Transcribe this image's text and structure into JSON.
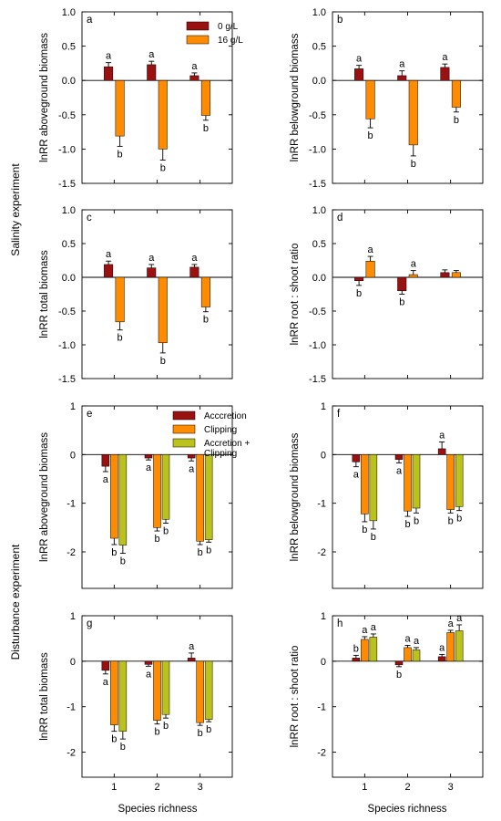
{
  "figure": {
    "group_labels": [
      "Salinity experiment",
      "Disturbance experiment"
    ],
    "x_axis_label": "Species richness",
    "legends": [
      {
        "entries": [
          {
            "label": "0 g/L",
            "color": "#9b1111"
          },
          {
            "label": "16 g/L",
            "color": "#ff8c00"
          }
        ]
      },
      {
        "entries": [
          {
            "label": "Acccretion",
            "color": "#9b1111"
          },
          {
            "label": "Clipping",
            "color": "#ff8c00"
          },
          {
            "label": "Accretion +\nClipping",
            "color": "#bcc21c"
          }
        ]
      }
    ]
  },
  "chart_data": [
    {
      "panel": "a",
      "type": "bar",
      "ylabel": "lnRR aboveground biomass",
      "ylim": [
        -1.5,
        1.0
      ],
      "yticks": [
        1.0,
        0.5,
        0.0,
        -0.5,
        -1.0,
        -1.5
      ],
      "tick_format": "1dp",
      "categories": [
        "1",
        "2",
        "3"
      ],
      "show_x_ticklabels": false,
      "series": [
        {
          "name": "0 g/L",
          "color": "#9b1111",
          "values": [
            0.2,
            0.23,
            0.07
          ],
          "errors": [
            0.06,
            0.05,
            0.04
          ],
          "letters": [
            "a",
            "a",
            "a"
          ]
        },
        {
          "name": "16 g/L",
          "color": "#ff8c00",
          "values": [
            -0.81,
            -1.0,
            -0.51
          ],
          "errors": [
            0.15,
            0.16,
            0.07
          ],
          "letters": [
            "b",
            "b",
            "b"
          ]
        }
      ]
    },
    {
      "panel": "b",
      "type": "bar",
      "ylabel": "lnRR belowground biomass",
      "ylim": [
        -1.5,
        1.0
      ],
      "yticks": [
        1.0,
        0.5,
        0.0,
        -0.5,
        -1.0,
        -1.5
      ],
      "tick_format": "1dp",
      "categories": [
        "1",
        "2",
        "3"
      ],
      "show_x_ticklabels": false,
      "series": [
        {
          "name": "0 g/L",
          "color": "#9b1111",
          "values": [
            0.17,
            0.07,
            0.19
          ],
          "errors": [
            0.05,
            0.07,
            0.05
          ],
          "letters": [
            "a",
            "a",
            "a"
          ]
        },
        {
          "name": "16 g/L",
          "color": "#ff8c00",
          "values": [
            -0.56,
            -0.94,
            -0.39
          ],
          "errors": [
            0.13,
            0.16,
            0.07
          ],
          "letters": [
            "b",
            "b",
            "b"
          ]
        }
      ]
    },
    {
      "panel": "c",
      "type": "bar",
      "ylabel": "lnRR total biomass",
      "ylim": [
        -1.5,
        1.0
      ],
      "yticks": [
        1.0,
        0.5,
        0.0,
        -0.5,
        -1.0,
        -1.5
      ],
      "tick_format": "1dp",
      "categories": [
        "1",
        "2",
        "3"
      ],
      "show_x_ticklabels": false,
      "series": [
        {
          "name": "0 g/L",
          "color": "#9b1111",
          "values": [
            0.19,
            0.14,
            0.15
          ],
          "errors": [
            0.05,
            0.05,
            0.04
          ],
          "letters": [
            "a",
            "a",
            "a"
          ]
        },
        {
          "name": "16 g/L",
          "color": "#ff8c00",
          "values": [
            -0.66,
            -0.97,
            -0.44
          ],
          "errors": [
            0.12,
            0.15,
            0.07
          ],
          "letters": [
            "b",
            "b",
            "b"
          ]
        }
      ]
    },
    {
      "panel": "d",
      "type": "bar",
      "ylabel": "lnRR root : shoot ratio",
      "ylim": [
        -1.5,
        1.0
      ],
      "yticks": [
        1.0,
        0.5,
        0.0,
        -0.5,
        -1.0,
        -1.5
      ],
      "tick_format": "1dp",
      "categories": [
        "1",
        "2",
        "3"
      ],
      "show_x_ticklabels": false,
      "series": [
        {
          "name": "0 g/L",
          "color": "#9b1111",
          "values": [
            -0.05,
            -0.2,
            0.07
          ],
          "errors": [
            0.07,
            0.05,
            0.04
          ],
          "letters": [
            "b",
            "b",
            ""
          ]
        },
        {
          "name": "16 g/L",
          "color": "#ff8c00",
          "values": [
            0.24,
            0.04,
            0.07
          ],
          "errors": [
            0.07,
            0.06,
            0.03
          ],
          "letters": [
            "a",
            "a",
            ""
          ]
        }
      ]
    },
    {
      "panel": "e",
      "type": "bar",
      "ylabel": "lnRR aboveground biomass",
      "ylim": [
        -2.75,
        1.0
      ],
      "yticks": [
        1,
        0,
        -1,
        -2
      ],
      "tick_format": "int",
      "categories": [
        "1",
        "2",
        "3"
      ],
      "show_x_ticklabels": false,
      "series": [
        {
          "name": "Acccretion",
          "color": "#9b1111",
          "values": [
            -0.24,
            -0.07,
            -0.07
          ],
          "errors": [
            0.11,
            0.04,
            0.06
          ],
          "letters": [
            "a",
            "a",
            "a"
          ]
        },
        {
          "name": "Clipping",
          "color": "#ff8c00",
          "values": [
            -1.72,
            -1.5,
            -1.78
          ],
          "errors": [
            0.13,
            0.07,
            0.07
          ],
          "letters": [
            "b",
            "b",
            "b"
          ]
        },
        {
          "name": "Accretion + Clipping",
          "color": "#bcc21c",
          "values": [
            -1.86,
            -1.33,
            -1.75
          ],
          "errors": [
            0.17,
            0.08,
            0.05
          ],
          "letters": [
            "b",
            "b",
            "b"
          ]
        }
      ]
    },
    {
      "panel": "f",
      "type": "bar",
      "ylabel": "lnRR belowground biomass",
      "ylim": [
        -2.75,
        1.0
      ],
      "yticks": [
        1,
        0,
        -1,
        -2
      ],
      "tick_format": "int",
      "categories": [
        "1",
        "2",
        "3"
      ],
      "show_x_ticklabels": false,
      "series": [
        {
          "name": "Acccretion",
          "color": "#9b1111",
          "values": [
            -0.15,
            -0.1,
            0.12
          ],
          "errors": [
            0.1,
            0.07,
            0.14
          ],
          "letters": [
            "a",
            "a",
            "a"
          ]
        },
        {
          "name": "Clipping",
          "color": "#ff8c00",
          "values": [
            -1.22,
            -1.16,
            -1.13
          ],
          "errors": [
            0.16,
            0.11,
            0.07
          ],
          "letters": [
            "b",
            "b",
            "b"
          ]
        },
        {
          "name": "Accretion + Clipping",
          "color": "#bcc21c",
          "values": [
            -1.36,
            -1.1,
            -1.07
          ],
          "errors": [
            0.17,
            0.1,
            0.08
          ],
          "letters": [
            "b",
            "b",
            "b"
          ]
        }
      ]
    },
    {
      "panel": "g",
      "type": "bar",
      "ylabel": "lnRR total biomass",
      "ylim": [
        -2.55,
        1.0
      ],
      "yticks": [
        1,
        0,
        -1,
        -2
      ],
      "tick_format": "int",
      "categories": [
        "1",
        "2",
        "3"
      ],
      "show_x_ticklabels": true,
      "series": [
        {
          "name": "Acccretion",
          "color": "#9b1111",
          "values": [
            -0.2,
            -0.07,
            0.07
          ],
          "errors": [
            0.08,
            0.04,
            0.11
          ],
          "letters": [
            "a",
            "a",
            "a"
          ]
        },
        {
          "name": "Clipping",
          "color": "#ff8c00",
          "values": [
            -1.4,
            -1.3,
            -1.35
          ],
          "errors": [
            0.14,
            0.08,
            0.06
          ],
          "letters": [
            "b",
            "b",
            "b"
          ]
        },
        {
          "name": "Accretion + Clipping",
          "color": "#bcc21c",
          "values": [
            -1.54,
            -1.17,
            -1.28
          ],
          "errors": [
            0.17,
            0.08,
            0.05
          ],
          "letters": [
            "b",
            "b",
            "b"
          ]
        }
      ]
    },
    {
      "panel": "h",
      "type": "bar",
      "ylabel": "lnRR root : shoot ratio",
      "ylim": [
        -2.55,
        1.0
      ],
      "yticks": [
        1,
        0,
        -1,
        -2
      ],
      "tick_format": "int",
      "categories": [
        "1",
        "2",
        "3"
      ],
      "show_x_ticklabels": true,
      "series": [
        {
          "name": "Acccretion",
          "color": "#9b1111",
          "values": [
            0.07,
            -0.08,
            0.1
          ],
          "errors": [
            0.06,
            0.04,
            0.05
          ],
          "letters": [
            "b",
            "b",
            "a"
          ]
        },
        {
          "name": "Clipping",
          "color": "#ff8c00",
          "values": [
            0.48,
            0.3,
            0.63
          ],
          "errors": [
            0.06,
            0.05,
            0.05
          ],
          "letters": [
            "a",
            "a",
            "a"
          ]
        },
        {
          "name": "Accretion + Clipping",
          "color": "#bcc21c",
          "values": [
            0.53,
            0.25,
            0.67
          ],
          "errors": [
            0.07,
            0.05,
            0.13
          ],
          "letters": [
            "a",
            "a",
            "a"
          ]
        }
      ]
    }
  ]
}
